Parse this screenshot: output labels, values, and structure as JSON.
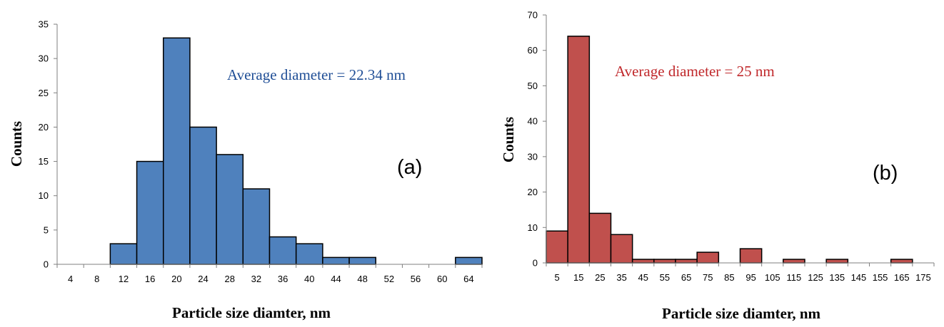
{
  "chart_data": [
    {
      "type": "bar",
      "categories": [
        "4",
        "8",
        "12",
        "16",
        "20",
        "24",
        "28",
        "32",
        "36",
        "40",
        "44",
        "48",
        "52",
        "56",
        "60",
        "64"
      ],
      "values": [
        0,
        0,
        3,
        15,
        33,
        20,
        16,
        11,
        4,
        3,
        1,
        1,
        0,
        0,
        0,
        1
      ],
      "xlabel": "Particle size diamter, nm",
      "ylabel": "Counts",
      "ylim": [
        0,
        35
      ],
      "yticks": [
        0,
        5,
        10,
        15,
        20,
        25,
        30,
        35
      ],
      "annotation": "Average diameter = 22.34 nm",
      "panel_label": "(a)",
      "color": "#4f81bd",
      "annotation_color": "#1f4e96",
      "grid": false
    },
    {
      "type": "bar",
      "categories": [
        "5",
        "15",
        "25",
        "35",
        "45",
        "55",
        "65",
        "75",
        "85",
        "95",
        "105",
        "115",
        "125",
        "135",
        "145",
        "155",
        "165",
        "175"
      ],
      "values": [
        9,
        64,
        14,
        8,
        1,
        1,
        1,
        3,
        0,
        4,
        0,
        1,
        0,
        1,
        0,
        0,
        1,
        0
      ],
      "xlabel": "Particle size diamter, nm",
      "ylabel": "Counts",
      "ylim": [
        0,
        70
      ],
      "yticks": [
        0,
        10,
        20,
        30,
        40,
        50,
        60,
        70
      ],
      "annotation": "Average diameter = 25 nm",
      "panel_label": "(b)",
      "color": "#c0504d",
      "annotation_color": "#c0282b",
      "grid": false
    }
  ]
}
